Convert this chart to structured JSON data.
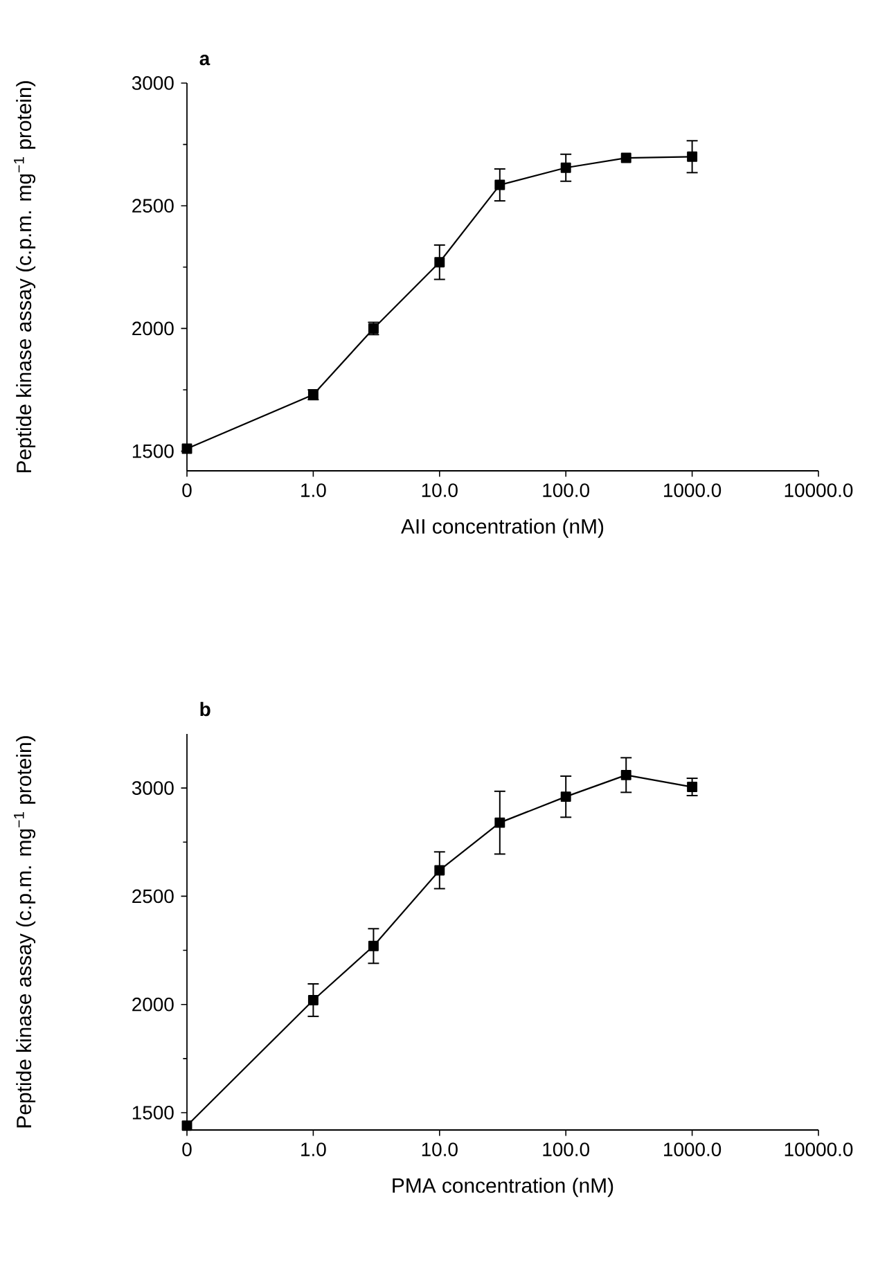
{
  "chart_data": [
    {
      "type": "line",
      "title": "a",
      "xlabel": "AII concentration (nM)",
      "ylabel": "Peptide kinase assay (c.p.m. mg$^{−1}$ protein)",
      "log": "x",
      "marker": "square",
      "line_style": "solid",
      "x": [
        0.1,
        1,
        3,
        10,
        30,
        100,
        300,
        1000
      ],
      "series": [
        {
          "color": "#000000",
          "values": [
            1510,
            1730,
            2000,
            2270,
            2585,
            2655,
            2695,
            2700
          ],
          "errors": [
            null,
            20,
            25,
            70,
            65,
            55,
            null,
            65
          ]
        }
      ],
      "xlim": [
        0.1,
        10000
      ],
      "xticks": [
        {
          "value": 0.1,
          "label": "0"
        },
        {
          "value": 1,
          "label": "1.0"
        },
        {
          "value": 10,
          "label": "10.0"
        },
        {
          "value": 100,
          "label": "100.0"
        },
        {
          "value": 1000,
          "label": "1000.0"
        },
        {
          "value": 10000,
          "label": "10000.0"
        }
      ],
      "ylim": [
        1420,
        3000
      ],
      "yticks": [
        1500,
        2000,
        2500,
        3000
      ]
    },
    {
      "type": "line",
      "title": "b",
      "xlabel": "PMA concentration (nM)",
      "ylabel": "Peptide kinase assay (c.p.m. mg$^{−1}$ protein)",
      "log": "x",
      "marker": "square",
      "line_style": "solid",
      "x": [
        0.1,
        1,
        3,
        10,
        30,
        100,
        300,
        1000
      ],
      "series": [
        {
          "color": "#000000",
          "values": [
            1440,
            2020,
            2270,
            2620,
            2840,
            2960,
            3060,
            3005
          ],
          "errors": [
            null,
            75,
            80,
            85,
            145,
            95,
            80,
            40
          ]
        }
      ],
      "xlim": [
        0.1,
        10000
      ],
      "xticks": [
        {
          "value": 0.1,
          "label": "0"
        },
        {
          "value": 1,
          "label": "1.0"
        },
        {
          "value": 10,
          "label": "10.0"
        },
        {
          "value": 100,
          "label": "100.0"
        },
        {
          "value": 1000,
          "label": "1000.0"
        },
        {
          "value": 10000,
          "label": "10000.0"
        }
      ],
      "ylim": [
        1420,
        3250
      ],
      "yticks": [
        1500,
        2000,
        2500,
        3000
      ]
    }
  ]
}
